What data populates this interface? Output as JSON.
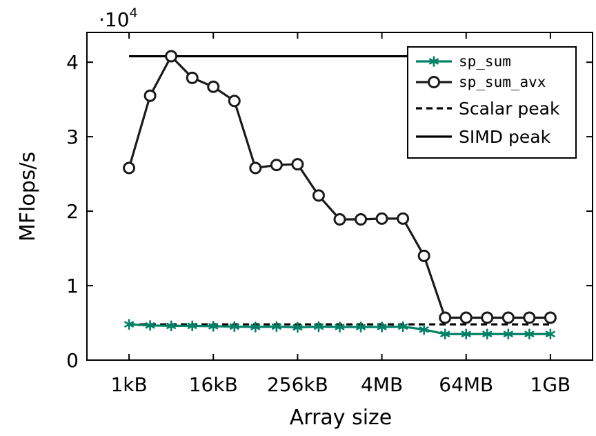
{
  "chart_data": {
    "type": "line",
    "xlabel": "Array size",
    "ylabel": "MFlops/s",
    "y_multiplier_prefix": "·10",
    "y_multiplier_exponent": "4",
    "ylim": [
      0,
      44000
    ],
    "yticks": [
      {
        "value": 0,
        "label": "0"
      },
      {
        "value": 10000,
        "label": "1"
      },
      {
        "value": 20000,
        "label": "2"
      },
      {
        "value": 30000,
        "label": "3"
      },
      {
        "value": 40000,
        "label": "4"
      }
    ],
    "xaxis": {
      "scale": "log2",
      "unit": "bytes"
    },
    "xlim_kB": [
      0.25,
      4194304
    ],
    "xticks": [
      {
        "value_kB": 1,
        "label": "1kB"
      },
      {
        "value_kB": 16,
        "label": "16kB"
      },
      {
        "value_kB": 256,
        "label": "256kB"
      },
      {
        "value_kB": 4096,
        "label": "4MB"
      },
      {
        "value_kB": 65536,
        "label": "64MB"
      },
      {
        "value_kB": 1048576,
        "label": "1GB"
      }
    ],
    "x_kB": [
      1,
      2,
      4,
      8,
      16,
      32,
      64,
      128,
      256,
      512,
      1024,
      2048,
      4096,
      8192,
      16384,
      32768,
      65536,
      131072,
      262144,
      524288,
      1048576
    ],
    "series": [
      {
        "name": "sp_sum",
        "color": "#008066",
        "marker": "asterisk",
        "values": [
          4800,
          4650,
          4600,
          4600,
          4550,
          4500,
          4450,
          4500,
          4400,
          4500,
          4450,
          4450,
          4450,
          4500,
          4100,
          3500,
          3500,
          3500,
          3500,
          3500,
          3500
        ]
      },
      {
        "name": "sp_sum_avx",
        "color": "#1a1a1a",
        "marker": "circle",
        "values": [
          25800,
          35500,
          40800,
          37900,
          36700,
          34800,
          25800,
          26200,
          26300,
          22100,
          18900,
          18900,
          19000,
          19000,
          14000,
          5700,
          5700,
          5700,
          5700,
          5700,
          5700
        ]
      },
      {
        "name": "Scalar peak",
        "color": "#000000",
        "style": "dashed",
        "value": 4800,
        "x_range_kB": [
          1,
          1048576
        ]
      },
      {
        "name": "SIMD peak",
        "color": "#000000",
        "style": "solid",
        "value": 40800,
        "x_range_kB": [
          1,
          1048576
        ]
      }
    ],
    "legend_position": "top-right",
    "grid": false
  }
}
